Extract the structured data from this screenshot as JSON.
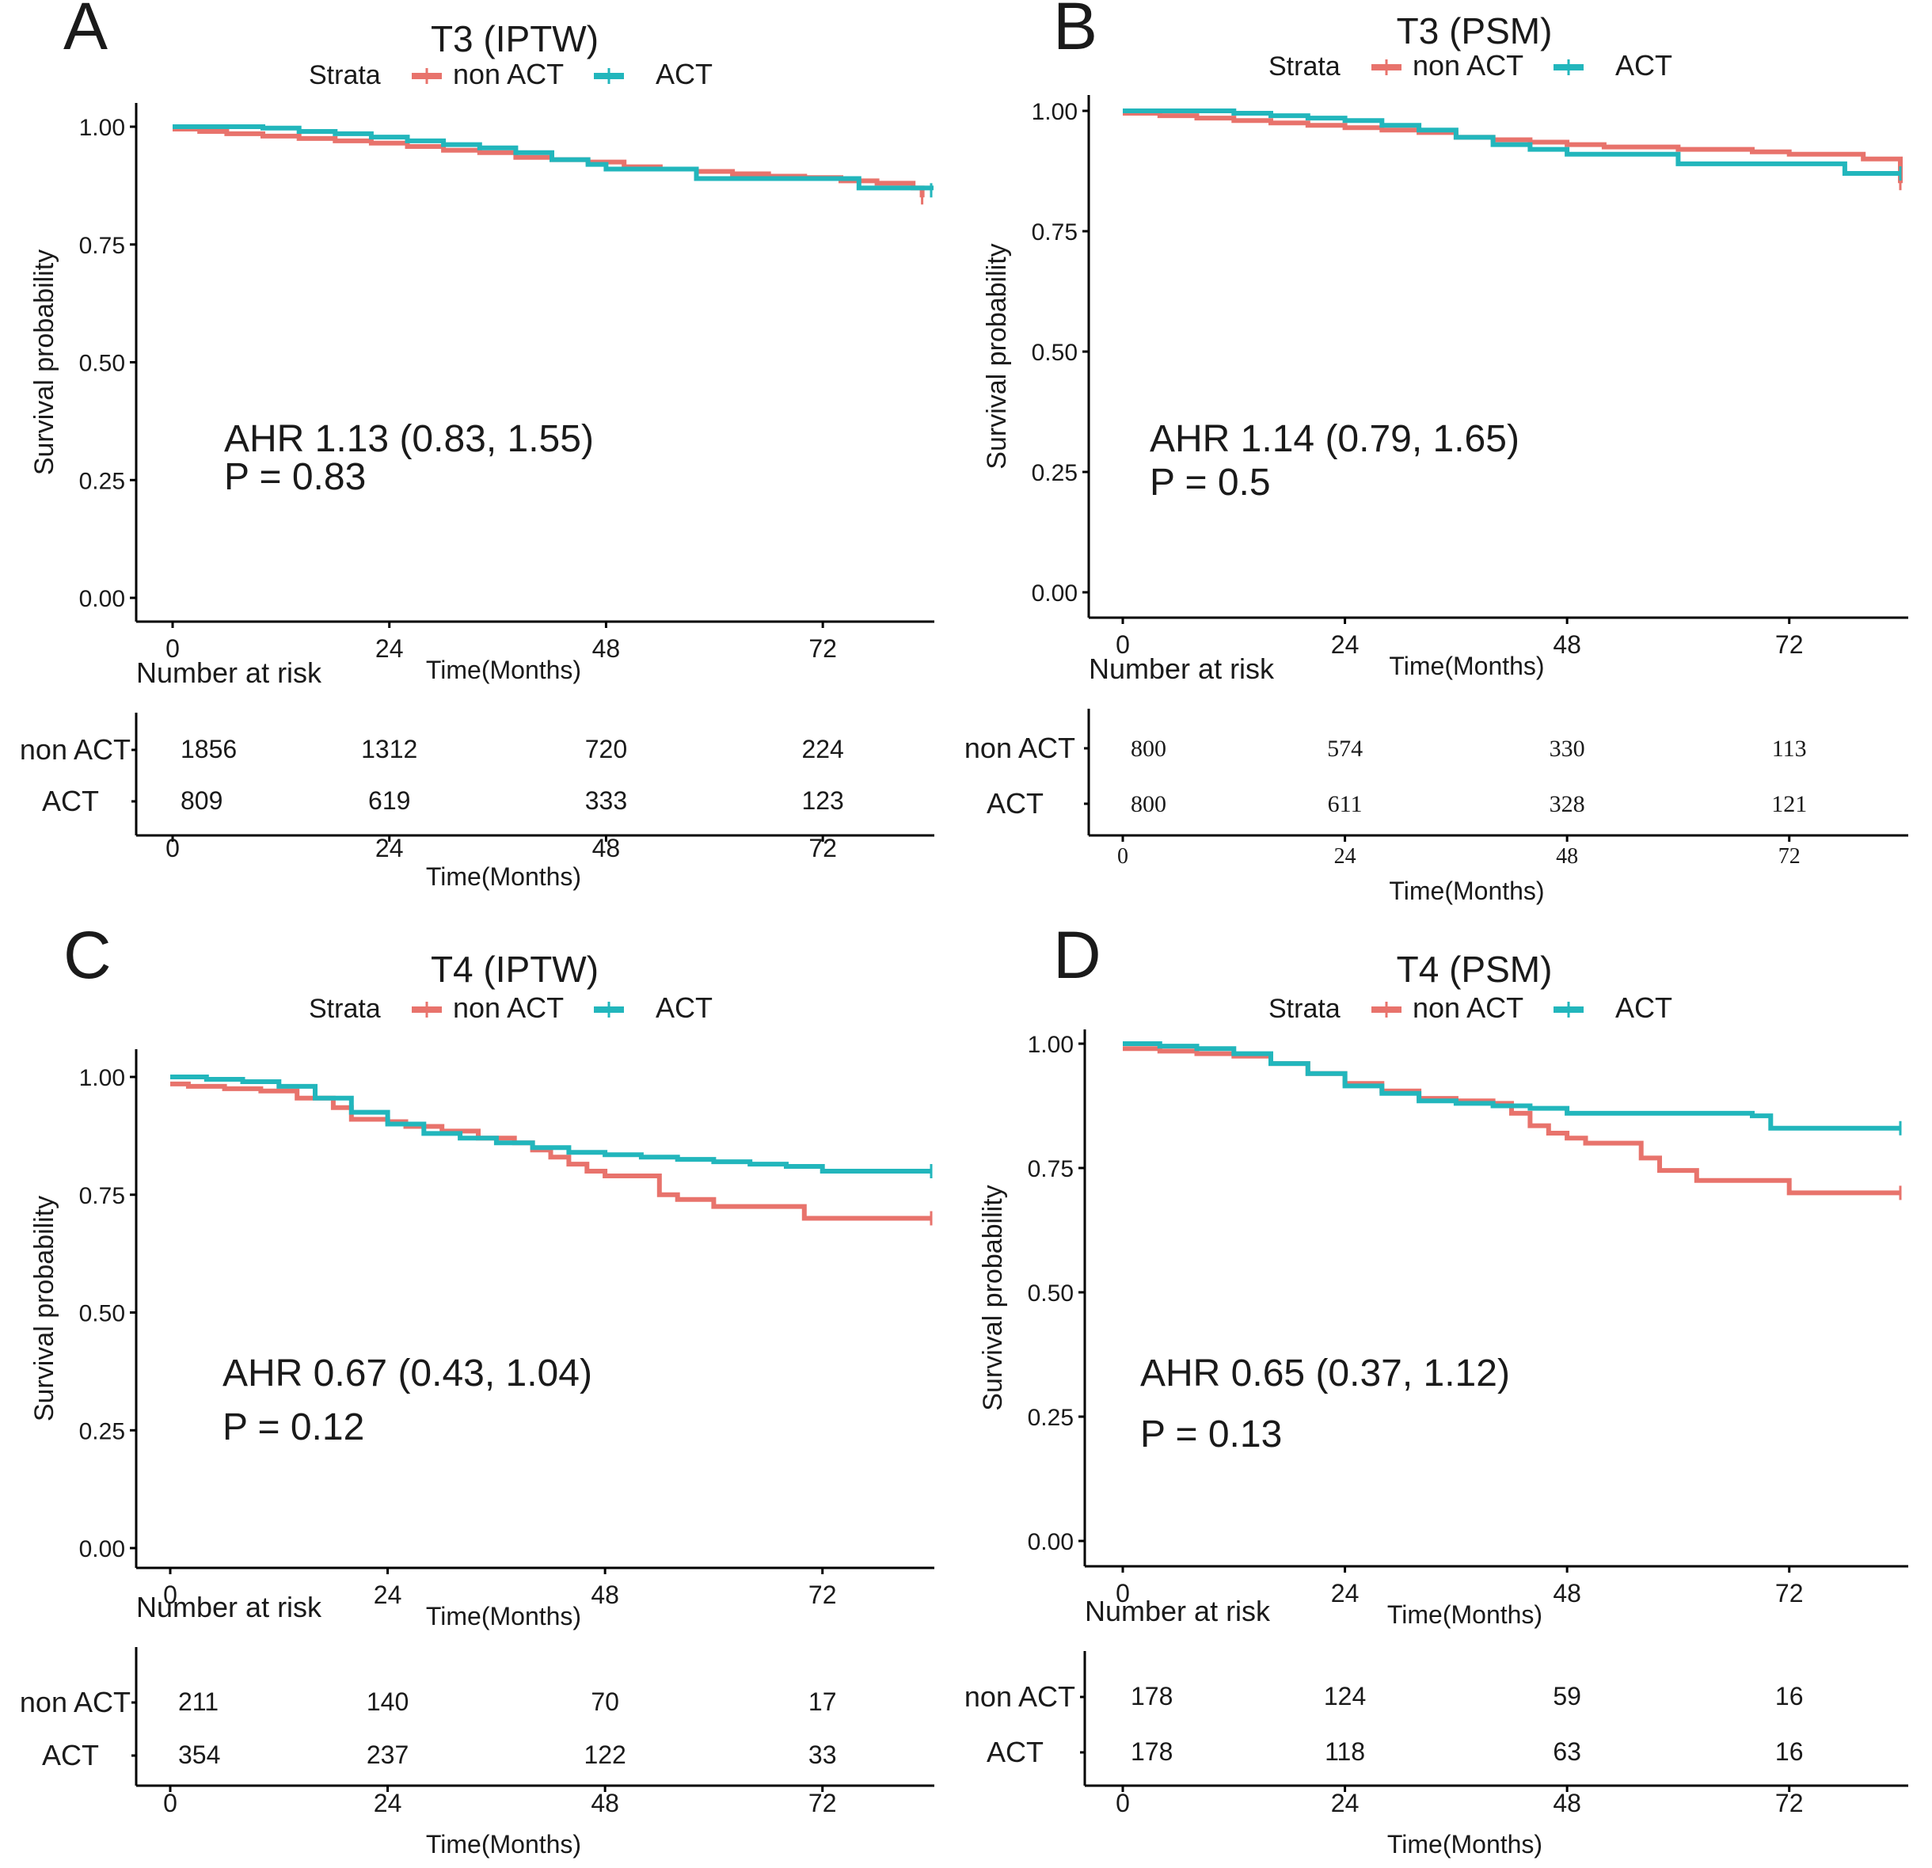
{
  "colors": {
    "non_act": "#E8736C",
    "act": "#22B6BC",
    "axis": "#000000",
    "text": "#1a1a1a"
  },
  "common": {
    "ylabel": "Survival probability",
    "xlabel": "Time(Months)",
    "strata_label": "Strata",
    "risk_title": "Number at risk",
    "groups": [
      "non ACT",
      "ACT"
    ],
    "yticks": [
      "1.00",
      "0.75",
      "0.50",
      "0.25",
      "0.00"
    ],
    "xticks": [
      "0",
      "24",
      "48",
      "72"
    ]
  },
  "chart_data": [
    {
      "panel": "A",
      "title": "T3 (IPTW)",
      "type": "line",
      "xlabel": "Time(Months)",
      "ylabel": "Survival probability",
      "xlim": [
        0,
        84
      ],
      "ylim": [
        0,
        1
      ],
      "annot": [
        "AHR 1.13 (0.83, 1.55)",
        "P = 0.83"
      ],
      "risk": {
        "non ACT": [
          "1856",
          "1312",
          "720",
          "224"
        ],
        "ACT": [
          "809",
          "619",
          "333",
          "123"
        ]
      },
      "series": [
        {
          "name": "non ACT",
          "x": [
            0,
            3,
            6,
            10,
            14,
            18,
            22,
            26,
            30,
            34,
            38,
            42,
            46,
            50,
            54,
            58,
            62,
            66,
            70,
            74,
            78,
            82,
            83
          ],
          "y": [
            0.995,
            0.99,
            0.985,
            0.98,
            0.975,
            0.97,
            0.965,
            0.958,
            0.95,
            0.945,
            0.935,
            0.93,
            0.925,
            0.915,
            0.91,
            0.905,
            0.9,
            0.895,
            0.892,
            0.885,
            0.88,
            0.87,
            0.85
          ]
        },
        {
          "name": "ACT",
          "x": [
            0,
            6,
            10,
            14,
            18,
            22,
            26,
            30,
            34,
            38,
            42,
            46,
            48,
            52,
            56,
            58,
            62,
            66,
            70,
            74,
            76,
            80,
            84
          ],
          "y": [
            1.0,
            1.0,
            0.997,
            0.99,
            0.985,
            0.978,
            0.97,
            0.962,
            0.955,
            0.945,
            0.93,
            0.92,
            0.91,
            0.91,
            0.91,
            0.89,
            0.89,
            0.89,
            0.89,
            0.89,
            0.87,
            0.87,
            0.865
          ]
        }
      ]
    },
    {
      "panel": "B",
      "title": "T3 (PSM)",
      "type": "line",
      "xlabel": "Time(Months)",
      "ylabel": "Survival probability",
      "xlim": [
        0,
        84
      ],
      "ylim": [
        0,
        1
      ],
      "annot": [
        "AHR 1.14 (0.79, 1.65)",
        "P = 0.5"
      ],
      "risk": {
        "non ACT": [
          "800",
          "574",
          "330",
          "113"
        ],
        "ACT": [
          "800",
          "611",
          "328",
          "121"
        ]
      },
      "series": [
        {
          "name": "non ACT",
          "x": [
            0,
            4,
            8,
            12,
            16,
            20,
            24,
            28,
            32,
            36,
            40,
            44,
            48,
            52,
            56,
            60,
            64,
            68,
            72,
            76,
            80,
            82,
            84
          ],
          "y": [
            0.995,
            0.99,
            0.985,
            0.98,
            0.975,
            0.97,
            0.965,
            0.96,
            0.955,
            0.945,
            0.94,
            0.935,
            0.93,
            0.925,
            0.925,
            0.92,
            0.92,
            0.915,
            0.91,
            0.91,
            0.9,
            0.9,
            0.85
          ]
        },
        {
          "name": "ACT",
          "x": [
            0,
            4,
            8,
            12,
            16,
            20,
            24,
            28,
            32,
            36,
            40,
            44,
            48,
            50,
            54,
            58,
            60,
            64,
            70,
            76,
            78,
            84
          ],
          "y": [
            1.0,
            1.0,
            1.0,
            0.995,
            0.99,
            0.985,
            0.98,
            0.97,
            0.96,
            0.945,
            0.93,
            0.92,
            0.91,
            0.91,
            0.91,
            0.91,
            0.89,
            0.89,
            0.89,
            0.89,
            0.87,
            0.87
          ]
        }
      ]
    },
    {
      "panel": "C",
      "title": "T4 (IPTW)",
      "type": "line",
      "xlabel": "Time(Months)",
      "ylabel": "Survival probability",
      "xlim": [
        0,
        84
      ],
      "ylim": [
        0,
        1
      ],
      "annot": [
        "AHR 0.67 (0.43, 1.04)",
        "P = 0.12"
      ],
      "risk": {
        "non ACT": [
          "211",
          "140",
          "70",
          "17"
        ],
        "ACT": [
          "354",
          "237",
          "122",
          "33"
        ]
      },
      "series": [
        {
          "name": "non ACT",
          "x": [
            0,
            2,
            6,
            10,
            14,
            18,
            20,
            24,
            26,
            30,
            34,
            38,
            40,
            42,
            44,
            46,
            48,
            52,
            54,
            56,
            60,
            64,
            68,
            70,
            78,
            84
          ],
          "y": [
            0.985,
            0.98,
            0.975,
            0.97,
            0.955,
            0.935,
            0.91,
            0.905,
            0.895,
            0.885,
            0.87,
            0.86,
            0.845,
            0.83,
            0.815,
            0.8,
            0.79,
            0.79,
            0.75,
            0.74,
            0.725,
            0.725,
            0.725,
            0.7,
            0.7,
            0.7
          ]
        },
        {
          "name": "ACT",
          "x": [
            0,
            4,
            8,
            12,
            16,
            20,
            24,
            28,
            32,
            36,
            40,
            44,
            48,
            52,
            56,
            60,
            64,
            68,
            72,
            76,
            80,
            84
          ],
          "y": [
            1.0,
            0.995,
            0.99,
            0.98,
            0.955,
            0.925,
            0.9,
            0.88,
            0.87,
            0.86,
            0.85,
            0.84,
            0.835,
            0.83,
            0.825,
            0.82,
            0.815,
            0.81,
            0.8,
            0.8,
            0.8,
            0.8
          ]
        }
      ]
    },
    {
      "panel": "D",
      "title": "T4 (PSM)",
      "type": "line",
      "xlabel": "Time(Months)",
      "ylabel": "Survival probability",
      "xlim": [
        0,
        84
      ],
      "ylim": [
        0,
        1
      ],
      "annot": [
        "AHR 0.65 (0.37, 1.12)",
        "P = 0.13"
      ],
      "risk": {
        "non ACT": [
          "178",
          "124",
          "59",
          "16"
        ],
        "ACT": [
          "178",
          "118",
          "63",
          "16"
        ]
      },
      "series": [
        {
          "name": "non ACT",
          "x": [
            0,
            4,
            8,
            12,
            16,
            20,
            24,
            28,
            32,
            36,
            40,
            42,
            44,
            46,
            48,
            50,
            54,
            56,
            58,
            62,
            66,
            70,
            72,
            78,
            84
          ],
          "y": [
            0.99,
            0.985,
            0.98,
            0.975,
            0.96,
            0.94,
            0.92,
            0.905,
            0.89,
            0.885,
            0.88,
            0.86,
            0.835,
            0.82,
            0.81,
            0.8,
            0.8,
            0.77,
            0.745,
            0.725,
            0.725,
            0.725,
            0.7,
            0.7,
            0.7
          ]
        },
        {
          "name": "ACT",
          "x": [
            0,
            4,
            8,
            12,
            16,
            20,
            24,
            28,
            32,
            36,
            40,
            44,
            48,
            52,
            56,
            60,
            64,
            68,
            70,
            76,
            80,
            84
          ],
          "y": [
            1.0,
            0.995,
            0.99,
            0.98,
            0.96,
            0.94,
            0.915,
            0.9,
            0.885,
            0.88,
            0.875,
            0.87,
            0.86,
            0.86,
            0.86,
            0.86,
            0.86,
            0.855,
            0.83,
            0.83,
            0.83,
            0.83
          ]
        }
      ]
    }
  ]
}
